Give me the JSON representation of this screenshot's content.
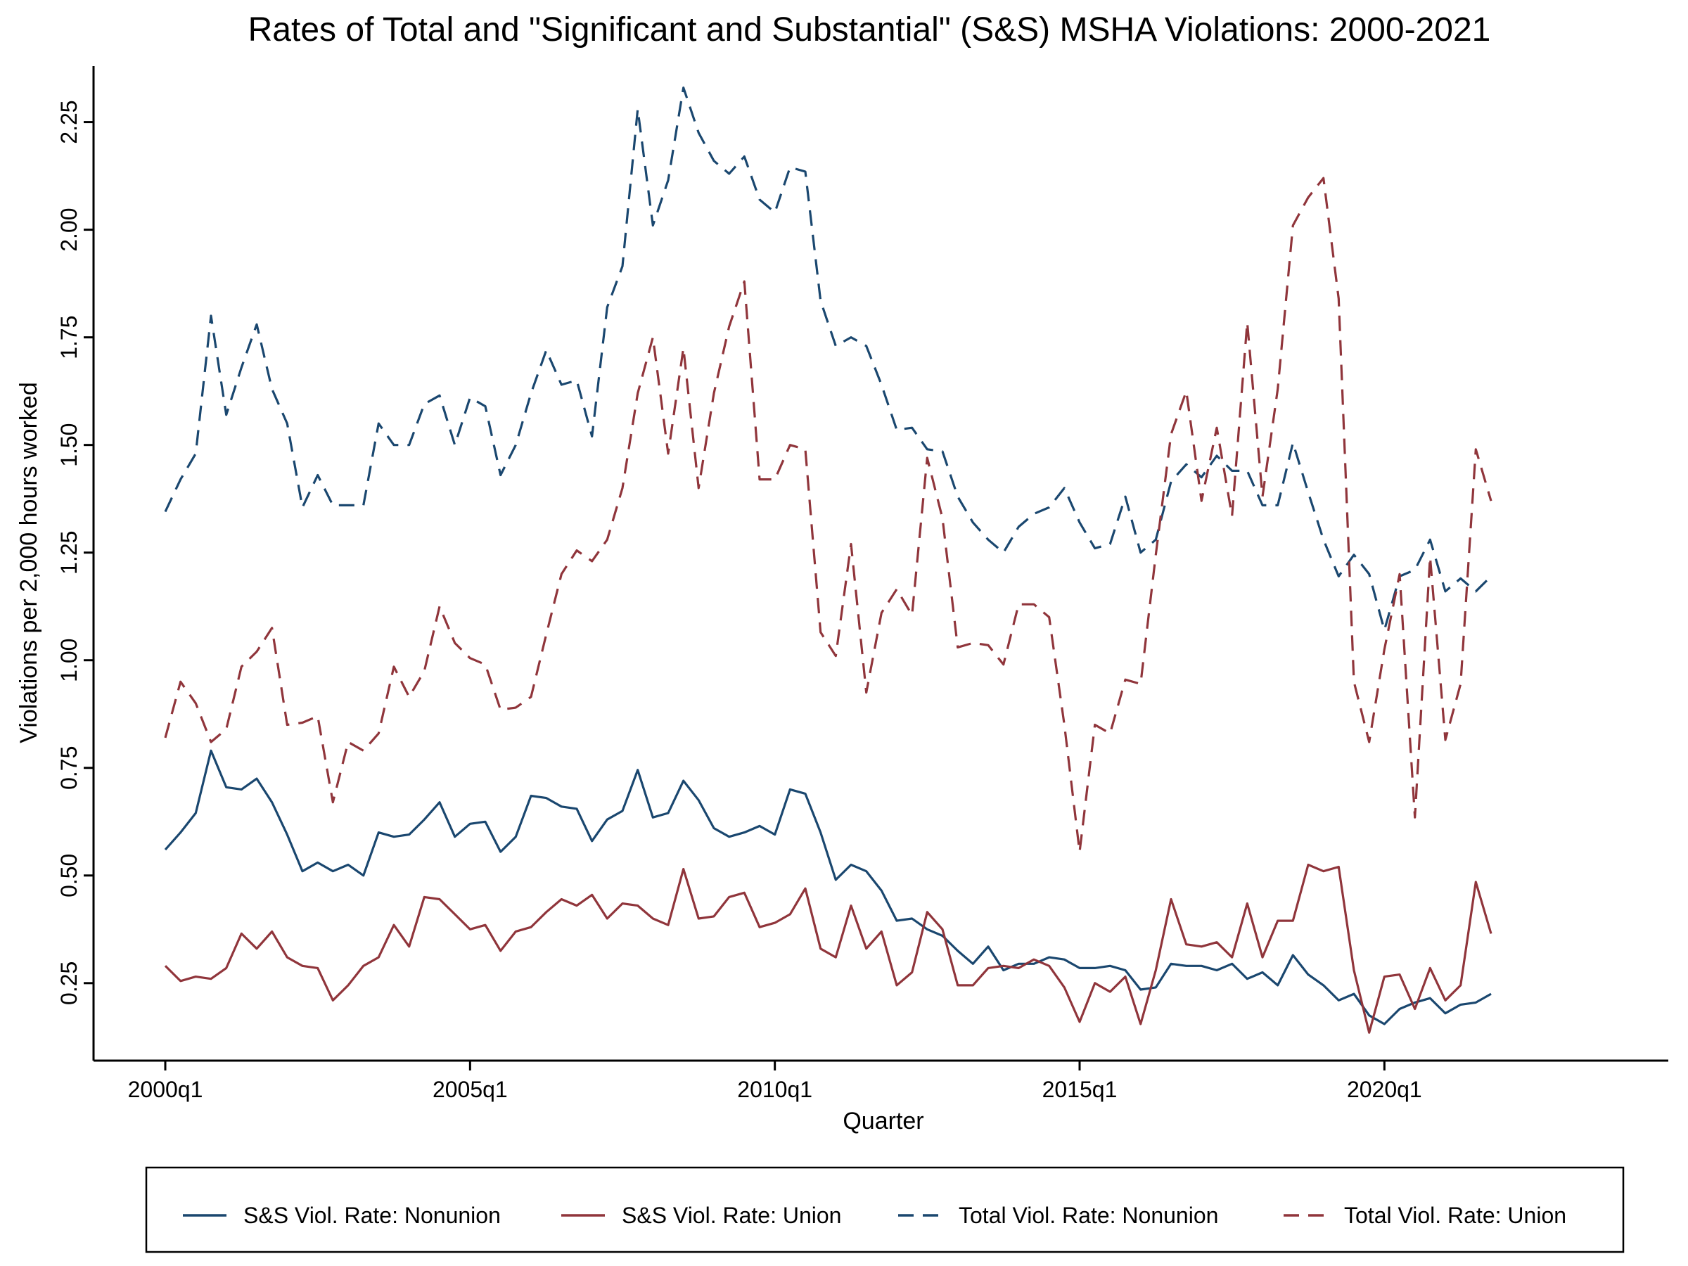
{
  "chart_data": {
    "type": "line",
    "title": "Rates of Total and \"Significant and Substantial\" (S&S) MSHA Violations: 2000-2021",
    "xlabel": "Quarter",
    "ylabel": "Violations per 2,000 hours worked",
    "x_ticks": [
      "2000q1",
      "2005q1",
      "2010q1",
      "2015q1",
      "2020q1"
    ],
    "y_ticks": [
      "0.25",
      "0.50",
      "0.75",
      "1.00",
      "1.25",
      "1.50",
      "1.75",
      "2.00",
      "2.25"
    ],
    "xlim": [
      "2000q1",
      "2021q4"
    ],
    "ylim": [
      0.07,
      2.38
    ],
    "grid": false,
    "legend_position": "bottom",
    "x": [
      "2000q1",
      "2000q2",
      "2000q3",
      "2000q4",
      "2001q1",
      "2001q2",
      "2001q3",
      "2001q4",
      "2002q1",
      "2002q2",
      "2002q3",
      "2002q4",
      "2003q1",
      "2003q2",
      "2003q3",
      "2003q4",
      "2004q1",
      "2004q2",
      "2004q3",
      "2004q4",
      "2005q1",
      "2005q2",
      "2005q3",
      "2005q4",
      "2006q1",
      "2006q2",
      "2006q3",
      "2006q4",
      "2007q1",
      "2007q2",
      "2007q3",
      "2007q4",
      "2008q1",
      "2008q2",
      "2008q3",
      "2008q4",
      "2009q1",
      "2009q2",
      "2009q3",
      "2009q4",
      "2010q1",
      "2010q2",
      "2010q3",
      "2010q4",
      "2011q1",
      "2011q2",
      "2011q3",
      "2011q4",
      "2012q1",
      "2012q2",
      "2012q3",
      "2012q4",
      "2013q1",
      "2013q2",
      "2013q3",
      "2013q4",
      "2014q1",
      "2014q2",
      "2014q3",
      "2014q4",
      "2015q1",
      "2015q2",
      "2015q3",
      "2015q4",
      "2016q1",
      "2016q2",
      "2016q3",
      "2016q4",
      "2017q1",
      "2017q2",
      "2017q3",
      "2017q4",
      "2018q1",
      "2018q2",
      "2018q3",
      "2018q4",
      "2019q1",
      "2019q2",
      "2019q3",
      "2019q4",
      "2020q1",
      "2020q2",
      "2020q3",
      "2020q4",
      "2021q1",
      "2021q2",
      "2021q3",
      "2021q4"
    ],
    "series": [
      {
        "name": "S&S Viol. Rate: Nonunion",
        "color": "#1a476f",
        "dash": "solid",
        "values": [
          0.56,
          0.6,
          0.645,
          0.79,
          0.705,
          0.7,
          0.725,
          0.67,
          0.595,
          0.51,
          0.53,
          0.51,
          0.525,
          0.5,
          0.6,
          0.59,
          0.595,
          0.63,
          0.67,
          0.59,
          0.62,
          0.625,
          0.555,
          0.59,
          0.685,
          0.68,
          0.66,
          0.655,
          0.58,
          0.63,
          0.65,
          0.745,
          0.635,
          0.645,
          0.72,
          0.675,
          0.61,
          0.59,
          0.6,
          0.615,
          0.595,
          0.7,
          0.69,
          0.6,
          0.49,
          0.525,
          0.51,
          0.465,
          0.395,
          0.4,
          0.375,
          0.36,
          0.325,
          0.295,
          0.335,
          0.28,
          0.295,
          0.295,
          0.31,
          0.305,
          0.285,
          0.285,
          0.29,
          0.28,
          0.235,
          0.24,
          0.295,
          0.29,
          0.29,
          0.28,
          0.295,
          0.26,
          0.275,
          0.245,
          0.315,
          0.27,
          0.245,
          0.21,
          0.225,
          0.175,
          0.155,
          0.19,
          0.205,
          0.215,
          0.18,
          0.2,
          0.205,
          0.225
        ]
      },
      {
        "name": "S&S Viol. Rate: Union",
        "color": "#90353b",
        "dash": "solid",
        "values": [
          0.29,
          0.255,
          0.265,
          0.26,
          0.285,
          0.365,
          0.33,
          0.37,
          0.31,
          0.29,
          0.285,
          0.21,
          0.245,
          0.29,
          0.31,
          0.385,
          0.335,
          0.45,
          0.445,
          0.41,
          0.375,
          0.385,
          0.325,
          0.37,
          0.38,
          0.415,
          0.445,
          0.43,
          0.455,
          0.4,
          0.435,
          0.43,
          0.4,
          0.385,
          0.515,
          0.4,
          0.405,
          0.45,
          0.46,
          0.38,
          0.39,
          0.41,
          0.47,
          0.33,
          0.31,
          0.43,
          0.33,
          0.37,
          0.245,
          0.275,
          0.415,
          0.375,
          0.245,
          0.245,
          0.285,
          0.29,
          0.285,
          0.305,
          0.29,
          0.24,
          0.16,
          0.25,
          0.23,
          0.265,
          0.155,
          0.28,
          0.445,
          0.34,
          0.335,
          0.345,
          0.31,
          0.435,
          0.31,
          0.395,
          0.395,
          0.525,
          0.51,
          0.52,
          0.28,
          0.135,
          0.265,
          0.27,
          0.19,
          0.285,
          0.21,
          0.245,
          0.485,
          0.365
        ]
      },
      {
        "name": "Total Viol. Rate: Nonunion",
        "color": "#1a476f",
        "dash": "dashed",
        "values": [
          1.345,
          1.42,
          1.48,
          1.8,
          1.57,
          1.68,
          1.78,
          1.63,
          1.55,
          1.355,
          1.43,
          1.36,
          1.36,
          1.36,
          1.55,
          1.5,
          1.5,
          1.595,
          1.615,
          1.5,
          1.61,
          1.59,
          1.43,
          1.5,
          1.62,
          1.72,
          1.64,
          1.65,
          1.52,
          1.82,
          1.915,
          2.28,
          2.01,
          2.115,
          2.33,
          2.225,
          2.16,
          2.13,
          2.17,
          2.07,
          2.04,
          2.145,
          2.135,
          1.835,
          1.73,
          1.75,
          1.73,
          1.64,
          1.535,
          1.54,
          1.49,
          1.485,
          1.38,
          1.32,
          1.28,
          1.25,
          1.31,
          1.34,
          1.355,
          1.4,
          1.32,
          1.26,
          1.27,
          1.38,
          1.25,
          1.28,
          1.415,
          1.455,
          1.425,
          1.475,
          1.44,
          1.44,
          1.36,
          1.36,
          1.505,
          1.39,
          1.28,
          1.195,
          1.245,
          1.2,
          1.07,
          1.195,
          1.21,
          1.28,
          1.16,
          1.19,
          1.16,
          1.195
        ]
      },
      {
        "name": "Total Viol. Rate: Union",
        "color": "#90353b",
        "dash": "dashed",
        "values": [
          0.82,
          0.95,
          0.9,
          0.81,
          0.84,
          0.985,
          1.02,
          1.075,
          0.85,
          0.855,
          0.87,
          0.67,
          0.81,
          0.79,
          0.83,
          0.985,
          0.915,
          0.975,
          1.125,
          1.04,
          1.005,
          0.99,
          0.885,
          0.89,
          0.915,
          1.06,
          1.2,
          1.255,
          1.23,
          1.28,
          1.4,
          1.62,
          1.75,
          1.48,
          1.725,
          1.4,
          1.62,
          1.775,
          1.88,
          1.42,
          1.42,
          1.5,
          1.49,
          1.065,
          1.01,
          1.27,
          0.925,
          1.11,
          1.165,
          1.105,
          1.47,
          1.33,
          1.03,
          1.04,
          1.035,
          0.99,
          1.13,
          1.13,
          1.1,
          0.85,
          0.555,
          0.85,
          0.83,
          0.955,
          0.945,
          1.245,
          1.525,
          1.625,
          1.37,
          1.54,
          1.335,
          1.785,
          1.38,
          1.63,
          2.01,
          2.075,
          2.12,
          1.84,
          0.95,
          0.81,
          1.025,
          1.2,
          0.635,
          1.24,
          0.815,
          0.945,
          1.49,
          1.37
        ]
      }
    ]
  }
}
